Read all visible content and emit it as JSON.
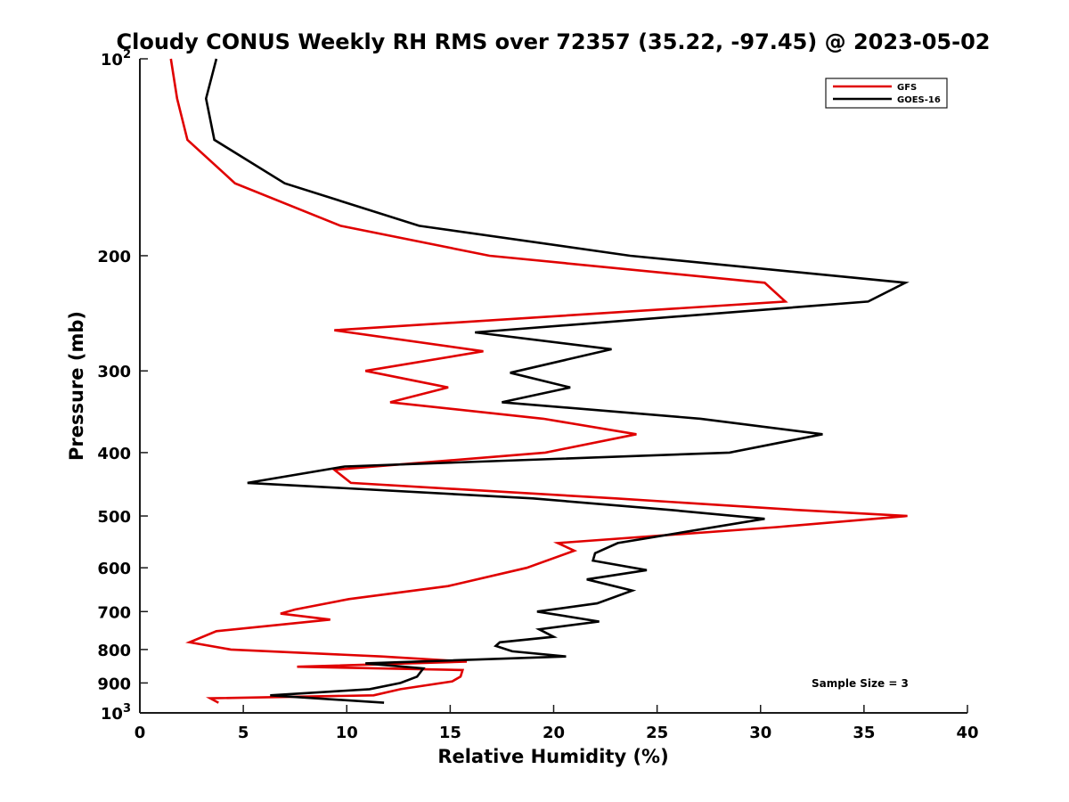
{
  "chart_data": {
    "type": "line",
    "title": "Cloudy CONUS Weekly RH RMS over 72357 (35.22, -97.45) @ 2023-05-02",
    "xlabel": "Relative Humidity (%)",
    "ylabel": "Pressure (mb)",
    "xlim": [
      0,
      40
    ],
    "ylim": [
      100,
      1000
    ],
    "y_scale": "log",
    "y_reversed": true,
    "grid": false,
    "legend_position": "top-right",
    "annotation": "Sample Size = 3",
    "x_ticks": [
      "0",
      "5",
      "10",
      "15",
      "20",
      "25",
      "30",
      "35",
      "40"
    ],
    "y_ticks": [
      {
        "value": 100,
        "base": "10",
        "exp": "2"
      },
      {
        "value": 200,
        "label": "200"
      },
      {
        "value": 300,
        "label": "300"
      },
      {
        "value": 400,
        "label": "400"
      },
      {
        "value": 500,
        "label": "500"
      },
      {
        "value": 600,
        "label": "600"
      },
      {
        "value": 700,
        "label": "700"
      },
      {
        "value": 800,
        "label": "800"
      },
      {
        "value": 900,
        "label": "900"
      },
      {
        "value": 1000,
        "base": "10",
        "exp": "3"
      }
    ],
    "series": [
      {
        "name": "GFS",
        "color": "#e00000",
        "points": [
          [
            1.5,
            100
          ],
          [
            1.8,
            115
          ],
          [
            2.3,
            133
          ],
          [
            4.6,
            155
          ],
          [
            9.7,
            180
          ],
          [
            16.9,
            200
          ],
          [
            30.2,
            220
          ],
          [
            31.2,
            235
          ],
          [
            9.4,
            260
          ],
          [
            16.6,
            280
          ],
          [
            10.9,
            300
          ],
          [
            14.9,
            318
          ],
          [
            12.1,
            335
          ],
          [
            19.5,
            355
          ],
          [
            24.0,
            375
          ],
          [
            19.6,
            400
          ],
          [
            9.4,
            425
          ],
          [
            10.2,
            445
          ],
          [
            23.0,
            470
          ],
          [
            32.0,
            490
          ],
          [
            37.1,
            500
          ],
          [
            30.8,
            520
          ],
          [
            20.2,
            550
          ],
          [
            21.0,
            565
          ],
          [
            18.7,
            600
          ],
          [
            14.9,
            640
          ],
          [
            10.1,
            670
          ],
          [
            7.5,
            695
          ],
          [
            6.8,
            705
          ],
          [
            9.2,
            720
          ],
          [
            3.7,
            750
          ],
          [
            2.4,
            780
          ],
          [
            4.4,
            800
          ],
          [
            11.7,
            820
          ],
          [
            15.8,
            835
          ],
          [
            7.6,
            850
          ],
          [
            15.6,
            860
          ],
          [
            15.5,
            880
          ],
          [
            15.1,
            895
          ],
          [
            12.6,
            920
          ],
          [
            11.3,
            940
          ],
          [
            3.4,
            950
          ],
          [
            3.8,
            965
          ]
        ]
      },
      {
        "name": "GOES-16",
        "color": "#000000",
        "points": [
          [
            3.7,
            100
          ],
          [
            3.2,
            115
          ],
          [
            3.6,
            133
          ],
          [
            7.0,
            155
          ],
          [
            13.5,
            180
          ],
          [
            23.7,
            200
          ],
          [
            37.0,
            220
          ],
          [
            35.2,
            235
          ],
          [
            16.2,
            262
          ],
          [
            22.8,
            278
          ],
          [
            17.9,
            302
          ],
          [
            20.8,
            318
          ],
          [
            17.5,
            335
          ],
          [
            27.1,
            355
          ],
          [
            33.0,
            375
          ],
          [
            28.5,
            400
          ],
          [
            9.9,
            420
          ],
          [
            5.2,
            445
          ],
          [
            19.0,
            470
          ],
          [
            25.8,
            490
          ],
          [
            30.2,
            505
          ],
          [
            23.1,
            550
          ],
          [
            22.0,
            570
          ],
          [
            21.9,
            585
          ],
          [
            24.5,
            605
          ],
          [
            21.6,
            625
          ],
          [
            23.8,
            650
          ],
          [
            22.1,
            680
          ],
          [
            19.2,
            700
          ],
          [
            22.2,
            725
          ],
          [
            19.3,
            745
          ],
          [
            20.0,
            765
          ],
          [
            17.4,
            780
          ],
          [
            17.2,
            790
          ],
          [
            18.0,
            805
          ],
          [
            20.6,
            820
          ],
          [
            10.9,
            840
          ],
          [
            13.7,
            855
          ],
          [
            13.4,
            880
          ],
          [
            12.6,
            900
          ],
          [
            11.1,
            920
          ],
          [
            6.3,
            940
          ],
          [
            11.8,
            965
          ]
        ]
      }
    ]
  }
}
